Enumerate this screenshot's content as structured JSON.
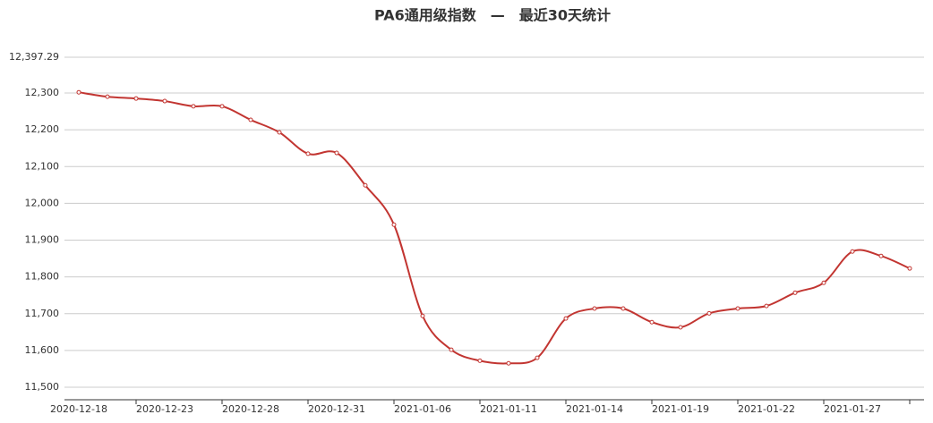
{
  "chart_data": {
    "type": "line",
    "title": "PA6通用级指数　—　最近30天统计",
    "categories": [
      "2020-12-18",
      null,
      null,
      "2020-12-23",
      null,
      null,
      "2020-12-28",
      null,
      null,
      "2020-12-31",
      null,
      null,
      "2021-01-06",
      null,
      null,
      "2021-01-11",
      null,
      null,
      "2021-01-14",
      null,
      null,
      "2021-01-19",
      null,
      null,
      "2021-01-22",
      null,
      null,
      "2021-01-27",
      null,
      null
    ],
    "series": [
      {
        "name": "PA6通用级指数",
        "color": "#c23531",
        "values": [
          12302,
          12290,
          12285,
          12278,
          12264,
          12264,
          12227,
          12193,
          12135,
          12137,
          12049,
          11942,
          11694,
          11602,
          11572,
          11565,
          11580,
          11687,
          11714,
          11714,
          11677,
          11663,
          11701,
          11714,
          11721,
          11757,
          11784,
          11869,
          11857,
          11823
        ]
      }
    ],
    "ylim": [
      11466,
      12397.29
    ],
    "yticks": [
      {
        "value": 11500,
        "label": "11,500"
      },
      {
        "value": 11600,
        "label": "11,600"
      },
      {
        "value": 11700,
        "label": "11,700"
      },
      {
        "value": 11800,
        "label": "11,800"
      },
      {
        "value": 11900,
        "label": "11,900"
      },
      {
        "value": 12000,
        "label": "12,000"
      },
      {
        "value": 12100,
        "label": "12,100"
      },
      {
        "value": 12200,
        "label": "12,200"
      },
      {
        "value": 12300,
        "label": "12,300"
      },
      {
        "value": 12397.29,
        "label": "12,397.29"
      }
    ],
    "grid": true,
    "smooth": true
  }
}
